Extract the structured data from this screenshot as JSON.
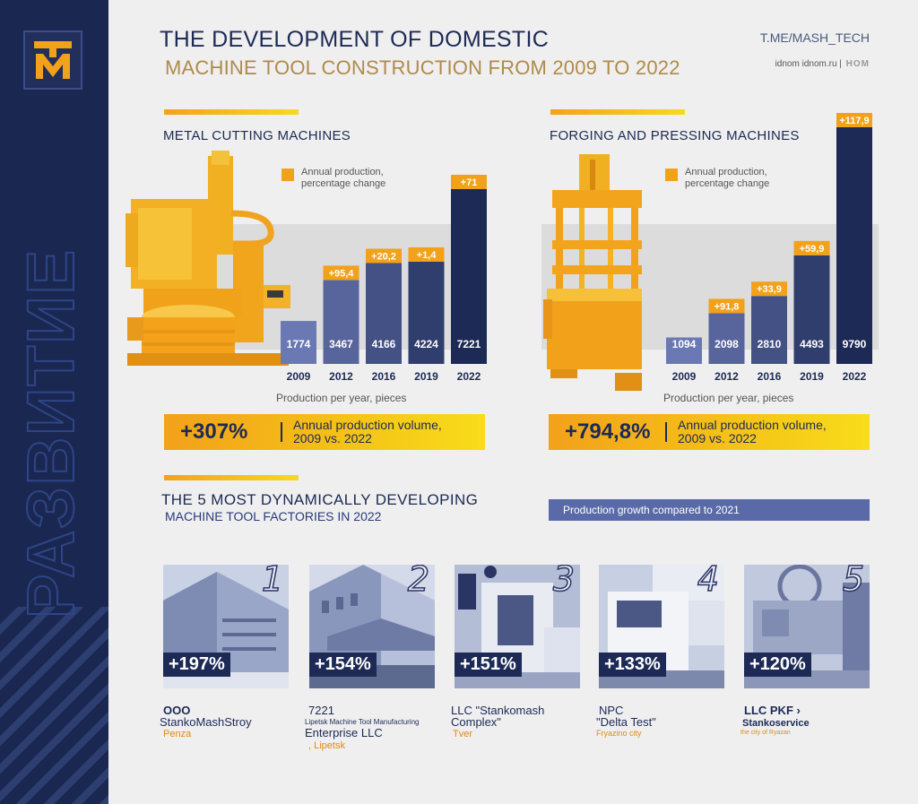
{
  "header": {
    "title_line1": "THE DEVELOPMENT OF DOMESTIC",
    "title_line2": "MACHINE TOOL CONSTRUCTION FROM 2009 TO 2022",
    "channel": "T.ME/MASH_TECH",
    "source": "idnom idnom.ru |",
    "source_brand": "НОМ"
  },
  "sidebar": {
    "vertical_word": "РАЗВИТИЕ"
  },
  "colors": {
    "navy": "#1c2a55",
    "orange": "#f2a11b",
    "yellow": "#f8dc1a",
    "bar_light": "#4a5b9e",
    "bar_dark": "#1c2a55"
  },
  "metal": {
    "section_title": "METAL CUTTING MACHINES",
    "legend_line1": "Annual production,",
    "legend_line2": "percentage change",
    "caption": "Production per year, pieces",
    "summary_value": "+307%",
    "summary_line1": "Annual production volume,",
    "summary_line2": "2009 vs. 2022"
  },
  "forging": {
    "section_title": "FORGING AND PRESSING MACHINES",
    "legend_line1": "Annual production,",
    "legend_line2": "percentage change",
    "caption": "Production per year, pieces",
    "summary_value": "+794,8%",
    "summary_line1": "Annual production volume,",
    "summary_line2": "2009 vs. 2022"
  },
  "chart_data": [
    {
      "type": "bar",
      "title": "METAL CUTTING MACHINES",
      "categories": [
        "2009",
        "2012",
        "2016",
        "2019",
        "2022"
      ],
      "values": [
        1774,
        3467,
        4166,
        4224,
        7221
      ],
      "change_labels": [
        "",
        "+95,4",
        "+20,2",
        "+1,4",
        "+71"
      ],
      "xlabel": "Production per year, pieces"
    },
    {
      "type": "bar",
      "title": "FORGING AND PRESSING MACHINES",
      "categories": [
        "2009",
        "2012",
        "2016",
        "2019",
        "2022"
      ],
      "values": [
        1094,
        2098,
        2810,
        4493,
        9790
      ],
      "change_labels": [
        "",
        "+91,8",
        "+33,9",
        "+59,9",
        "+117,9"
      ],
      "xlabel": "Production per year, pieces"
    }
  ],
  "factories": {
    "title_line1": "THE 5 MOST DYNAMICALLY DEVELOPING",
    "title_line2": "MACHINE TOOL FACTORIES IN 2022",
    "growth_label": "Production growth compared to 2021",
    "items": [
      {
        "rank": "1",
        "growth": "+197%",
        "name_line1": "ООО",
        "name_line2": "StankoMashStroy",
        "city": "Penza"
      },
      {
        "rank": "2",
        "growth": "+154%",
        "name_line1": "7221",
        "name_small": "Lipetsk Machine Tool Manufacturing",
        "name_line2": "Enterprise LLC",
        "city": ", Lipetsk"
      },
      {
        "rank": "3",
        "growth": "+151%",
        "name_line1": "LLC \"Stankomash",
        "name_line2": "Complex\"",
        "city": "Tver"
      },
      {
        "rank": "4",
        "growth": "+133%",
        "name_line1": "NPC",
        "name_line2": "\"Delta Test\"",
        "city": "Fryazino city"
      },
      {
        "rank": "5",
        "growth": "+120%",
        "name_line1": "LLC PKF  ›",
        "name_line2": "Stankoservice",
        "city": "the city of Ryazan"
      }
    ]
  }
}
